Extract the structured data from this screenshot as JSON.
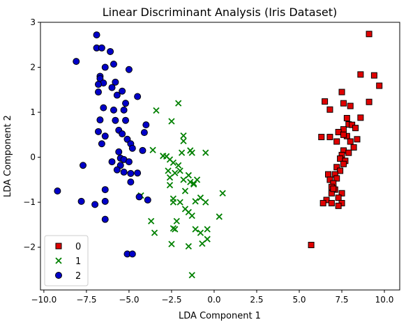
{
  "chart_data": {
    "type": "scatter",
    "title": "Linear Discriminant Analysis (Iris Dataset)",
    "xlabel": "LDA Component 1",
    "ylabel": "LDA Component 2",
    "xlim": [
      -10.2,
      10.9
    ],
    "ylim": [
      -2.95,
      3.0
    ],
    "xticks": [
      -10.0,
      -7.5,
      -5.0,
      -2.5,
      0.0,
      2.5,
      5.0,
      7.5,
      10.0
    ],
    "xtick_labels": [
      "−10.0",
      "−7.5",
      "−5.0",
      "−2.5",
      "0.0",
      "2.5",
      "5.0",
      "7.5",
      "10.0"
    ],
    "yticks": [
      -2,
      -1,
      0,
      1,
      2,
      3
    ],
    "ytick_labels": [
      "−2",
      "−1",
      "0",
      "1",
      "2",
      "3"
    ],
    "grid": false,
    "legend_position": "lower-left",
    "series": [
      {
        "name": "0",
        "marker": "square",
        "color": "#e00000",
        "edge": "#000000",
        "points": [
          [
            9.1,
            2.74
          ],
          [
            8.6,
            1.84
          ],
          [
            9.4,
            1.82
          ],
          [
            9.7,
            1.59
          ],
          [
            9.1,
            1.23
          ],
          [
            6.5,
            1.24
          ],
          [
            6.8,
            1.06
          ],
          [
            7.5,
            1.45
          ],
          [
            7.6,
            1.2
          ],
          [
            8.0,
            1.14
          ],
          [
            8.6,
            0.88
          ],
          [
            7.8,
            0.87
          ],
          [
            7.9,
            0.73
          ],
          [
            8.1,
            0.72
          ],
          [
            8.3,
            0.65
          ],
          [
            7.6,
            0.62
          ],
          [
            7.3,
            0.56
          ],
          [
            8.4,
            0.4
          ],
          [
            7.2,
            0.35
          ],
          [
            6.3,
            0.45
          ],
          [
            6.8,
            0.45
          ],
          [
            7.8,
            0.47
          ],
          [
            7.6,
            0.5
          ],
          [
            8.0,
            0.35
          ],
          [
            8.2,
            0.22
          ],
          [
            7.6,
            0.15
          ],
          [
            7.9,
            0.1
          ],
          [
            7.5,
            0.05
          ],
          [
            7.4,
            -0.03
          ],
          [
            7.7,
            -0.08
          ],
          [
            7.6,
            -0.15
          ],
          [
            7.2,
            -0.22
          ],
          [
            7.4,
            -0.3
          ],
          [
            7.1,
            -0.38
          ],
          [
            6.7,
            -0.38
          ],
          [
            7.2,
            -0.47
          ],
          [
            6.8,
            -0.5
          ],
          [
            7.0,
            -0.58
          ],
          [
            6.9,
            -0.66
          ],
          [
            7.1,
            -0.72
          ],
          [
            6.9,
            -0.8
          ],
          [
            7.5,
            -0.8
          ],
          [
            7.3,
            -0.9
          ],
          [
            6.6,
            -0.95
          ],
          [
            6.9,
            -1.02
          ],
          [
            7.5,
            -1.02
          ],
          [
            7.3,
            -1.08
          ],
          [
            6.4,
            -1.02
          ],
          [
            5.7,
            -1.95
          ],
          [
            7.0,
            -0.7
          ]
        ]
      },
      {
        "name": "1",
        "marker": "x",
        "color": "#008000",
        "points": [
          [
            -2.1,
            1.2
          ],
          [
            -3.4,
            1.04
          ],
          [
            -2.5,
            0.8
          ],
          [
            -1.8,
            0.48
          ],
          [
            -1.8,
            0.36
          ],
          [
            -3.6,
            0.16
          ],
          [
            -3.0,
            0.03
          ],
          [
            -2.8,
            0.02
          ],
          [
            -1.9,
            0.1
          ],
          [
            -2.6,
            -0.05
          ],
          [
            -2.4,
            -0.12
          ],
          [
            -2.1,
            -0.18
          ],
          [
            -1.4,
            0.15
          ],
          [
            -1.3,
            0.1
          ],
          [
            -0.5,
            0.1
          ],
          [
            -2.7,
            -0.3
          ],
          [
            -2.3,
            -0.35
          ],
          [
            -2.0,
            -0.3
          ],
          [
            -1.5,
            -0.4
          ],
          [
            -1.8,
            -0.5
          ],
          [
            -1.4,
            -0.55
          ],
          [
            -1.2,
            -0.6
          ],
          [
            -1.0,
            -0.5
          ],
          [
            -2.6,
            -0.45
          ],
          [
            -2.6,
            -0.62
          ],
          [
            -1.7,
            -0.75
          ],
          [
            -1.2,
            -0.58
          ],
          [
            -0.8,
            -0.9
          ],
          [
            0.5,
            -0.8
          ],
          [
            -4.3,
            -0.85
          ],
          [
            -2.4,
            -0.92
          ],
          [
            -2.4,
            -1.0
          ],
          [
            -2.0,
            -1.0
          ],
          [
            -1.1,
            -0.98
          ],
          [
            -1.7,
            -1.15
          ],
          [
            -1.5,
            -1.22
          ],
          [
            -0.5,
            -1.0
          ],
          [
            -1.3,
            -1.3
          ],
          [
            -3.7,
            -1.42
          ],
          [
            -2.2,
            -1.42
          ],
          [
            -2.4,
            -1.58
          ],
          [
            -2.3,
            -1.6
          ],
          [
            -1.1,
            -1.6
          ],
          [
            -0.8,
            -1.68
          ],
          [
            -3.5,
            -1.68
          ],
          [
            -0.4,
            -1.6
          ],
          [
            -0.4,
            -1.82
          ],
          [
            -0.7,
            -1.92
          ],
          [
            -2.5,
            -1.93
          ],
          [
            -1.5,
            -1.98
          ],
          [
            0.3,
            -1.32
          ],
          [
            -1.3,
            -2.62
          ]
        ]
      },
      {
        "name": "2",
        "marker": "circle",
        "color": "#0000c8",
        "edge": "#000000",
        "points": [
          [
            -6.9,
            2.72
          ],
          [
            -6.9,
            2.43
          ],
          [
            -6.6,
            2.43
          ],
          [
            -6.1,
            2.35
          ],
          [
            -8.1,
            2.13
          ],
          [
            -6.4,
            2.0
          ],
          [
            -5.9,
            2.07
          ],
          [
            -5.0,
            1.95
          ],
          [
            -6.7,
            1.8
          ],
          [
            -6.7,
            1.75
          ],
          [
            -6.5,
            1.65
          ],
          [
            -6.8,
            1.62
          ],
          [
            -5.8,
            1.67
          ],
          [
            -6.0,
            1.55
          ],
          [
            -5.4,
            1.47
          ],
          [
            -6.8,
            1.45
          ],
          [
            -5.7,
            1.38
          ],
          [
            -4.5,
            1.35
          ],
          [
            -5.2,
            1.2
          ],
          [
            -6.5,
            1.1
          ],
          [
            -5.9,
            1.05
          ],
          [
            -5.3,
            1.05
          ],
          [
            -6.7,
            0.83
          ],
          [
            -5.8,
            0.82
          ],
          [
            -5.2,
            0.82
          ],
          [
            -4.0,
            0.72
          ],
          [
            -5.6,
            0.6
          ],
          [
            -6.8,
            0.57
          ],
          [
            -4.1,
            0.55
          ],
          [
            -5.4,
            0.52
          ],
          [
            -6.4,
            0.47
          ],
          [
            -5.1,
            0.4
          ],
          [
            -4.9,
            0.3
          ],
          [
            -6.6,
            0.3
          ],
          [
            -4.8,
            0.2
          ],
          [
            -5.6,
            0.12
          ],
          [
            -4.2,
            0.15
          ],
          [
            -5.5,
            -0.02
          ],
          [
            -5.3,
            -0.05
          ],
          [
            -5.0,
            -0.1
          ],
          [
            -6.0,
            -0.1
          ],
          [
            -5.5,
            -0.18
          ],
          [
            -5.7,
            -0.28
          ],
          [
            -5.3,
            -0.33
          ],
          [
            -4.9,
            -0.36
          ],
          [
            -7.7,
            -0.18
          ],
          [
            -4.5,
            -0.35
          ],
          [
            -4.9,
            -0.55
          ],
          [
            -6.4,
            -0.72
          ],
          [
            -9.2,
            -0.75
          ],
          [
            -7.8,
            -0.98
          ],
          [
            -6.4,
            -0.98
          ],
          [
            -7.0,
            -1.05
          ],
          [
            -4.4,
            -0.88
          ],
          [
            -3.9,
            -0.95
          ],
          [
            -6.4,
            -1.38
          ],
          [
            -5.1,
            -2.15
          ],
          [
            -4.8,
            -2.15
          ]
        ]
      }
    ]
  }
}
